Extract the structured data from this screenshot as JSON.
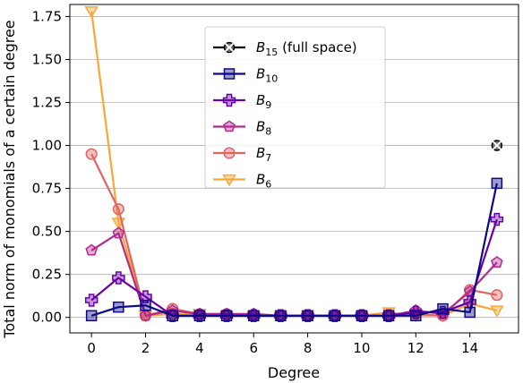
{
  "chart_data": {
    "type": "line",
    "xlabel": "Degree",
    "ylabel": "Total norm of monomials of a certain degree",
    "xlim": [
      -0.8,
      15.8
    ],
    "ylim": [
      -0.09,
      1.82
    ],
    "xticks": [
      0,
      2,
      4,
      6,
      8,
      10,
      12,
      14
    ],
    "yticks": [
      0.0,
      0.25,
      0.5,
      0.75,
      1.0,
      1.25,
      1.5,
      1.75
    ],
    "ytick_labels": [
      "0.00",
      "0.25",
      "0.50",
      "0.75",
      "1.00",
      "1.25",
      "1.50",
      "1.75"
    ],
    "grid": "horizontal",
    "legend_position": "top-center",
    "x": [
      0,
      1,
      2,
      3,
      4,
      5,
      6,
      7,
      8,
      9,
      10,
      11,
      12,
      13,
      14,
      15
    ],
    "series": [
      {
        "name": "B15 (full space)",
        "base": "B",
        "sub": "15",
        "suffix": " (full space)",
        "color": "#000000",
        "marker": "x-circle",
        "x": [
          15
        ],
        "values": [
          1.0
        ]
      },
      {
        "name": "B10",
        "base": "B",
        "sub": "10",
        "suffix": "",
        "color": "#0d0887",
        "marker": "square",
        "values": [
          0.01,
          0.06,
          0.07,
          0.01,
          0.01,
          0.01,
          0.01,
          0.01,
          0.01,
          0.01,
          0.01,
          0.01,
          0.01,
          0.05,
          0.03,
          0.78
        ]
      },
      {
        "name": "B9",
        "base": "B",
        "sub": "9",
        "suffix": "",
        "color": "#6a00a8",
        "marker": "plus",
        "values": [
          0.1,
          0.23,
          0.12,
          0.01,
          0.01,
          0.01,
          0.01,
          0.01,
          0.01,
          0.01,
          0.01,
          0.01,
          0.03,
          0.03,
          0.09,
          0.57
        ]
      },
      {
        "name": "B8",
        "base": "B",
        "sub": "8",
        "suffix": "",
        "color": "#b12a90",
        "marker": "pentagon",
        "values": [
          0.39,
          0.49,
          0.01,
          0.04,
          0.02,
          0.02,
          0.02,
          0.01,
          0.01,
          0.01,
          0.01,
          0.01,
          0.04,
          0.02,
          0.15,
          0.32
        ]
      },
      {
        "name": "B7",
        "base": "B",
        "sub": "7",
        "suffix": "",
        "color": "#e16462",
        "marker": "circle",
        "values": [
          0.95,
          0.63,
          0.01,
          0.05,
          0.02,
          0.02,
          0.01,
          0.01,
          0.01,
          0.01,
          0.01,
          0.01,
          0.02,
          0.01,
          0.16,
          0.13
        ]
      },
      {
        "name": "B6",
        "base": "B",
        "sub": "6",
        "suffix": "",
        "color": "#fca636",
        "marker": "triangle-down",
        "values": [
          1.78,
          0.55,
          0.01,
          0.02,
          0.02,
          0.01,
          0.01,
          0.01,
          0.01,
          0.01,
          0.01,
          0.03,
          0.01,
          0.01,
          0.08,
          0.04
        ]
      }
    ]
  }
}
